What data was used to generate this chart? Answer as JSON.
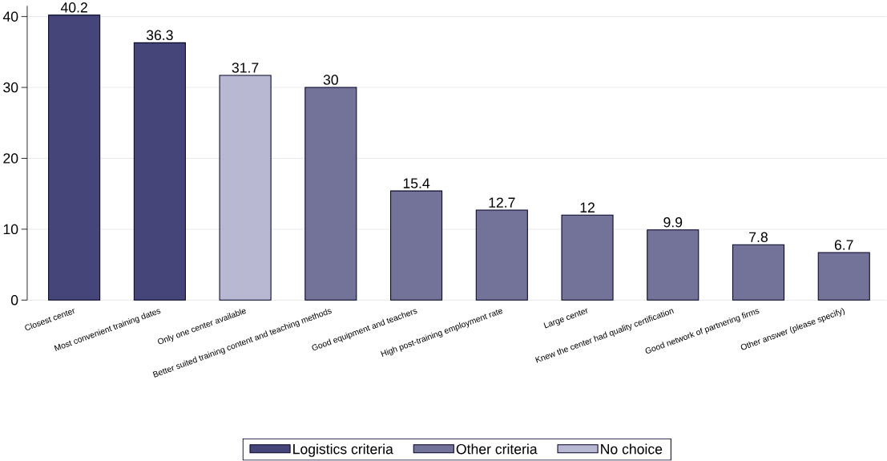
{
  "chart_data": {
    "type": "bar",
    "categories": [
      "Closest center",
      "Most convenient training dates",
      "Only one center available",
      "Better suited training content and teaching methods",
      "Good equipment and teachers",
      "High post-training employment rate",
      "Large center",
      "Knew the center had quality certification",
      "Good network of partnering firms",
      "Other answer (please specify)"
    ],
    "series": [
      {
        "name": "Logistics criteria",
        "color": "#45457a",
        "values": [
          40.2,
          36.3,
          null,
          null,
          null,
          null,
          null,
          null,
          null,
          null
        ]
      },
      {
        "name": "Other criteria",
        "color": "#737399",
        "values": [
          null,
          null,
          null,
          30,
          15.4,
          12.7,
          12,
          9.9,
          7.8,
          6.7
        ]
      },
      {
        "name": "No choice",
        "color": "#b8b8d2",
        "values": [
          null,
          null,
          31.7,
          null,
          null,
          null,
          null,
          null,
          null,
          null
        ]
      }
    ],
    "ylim": [
      0,
      41.5
    ],
    "yticks": [
      0,
      10,
      20,
      30,
      40
    ],
    "grid": "y",
    "legend": "bottom",
    "data_labels": true
  }
}
